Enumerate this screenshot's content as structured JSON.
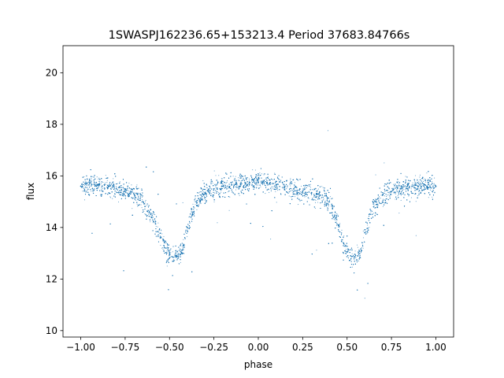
{
  "chart_data": {
    "type": "scatter",
    "title": "1SWASPJ162236.65+153213.4 Period 37683.84766s",
    "xlabel": "phase",
    "ylabel": "flux",
    "xlim": [
      -1.1,
      1.1
    ],
    "ylim": [
      9.75,
      21.05
    ],
    "xticks": [
      -1.0,
      -0.75,
      -0.5,
      -0.25,
      0.0,
      0.25,
      0.5,
      0.75,
      1.0
    ],
    "xtick_labels": [
      "−1.00",
      "−0.75",
      "−0.50",
      "−0.25",
      "0.00",
      "0.25",
      "0.50",
      "0.75",
      "1.00"
    ],
    "yticks": [
      10,
      12,
      14,
      16,
      18,
      20
    ],
    "ytick_labels": [
      "10",
      "12",
      "14",
      "16",
      "18",
      "20"
    ],
    "grid": false,
    "color": "#1f77b4",
    "series": [
      {
        "x": [
          -1.0,
          -0.95,
          -0.9,
          -0.85,
          -0.8,
          -0.75,
          -0.7,
          -0.65,
          -0.6,
          -0.55,
          -0.52,
          -0.5,
          -0.48,
          -0.46,
          -0.44,
          -0.42,
          -0.4,
          -0.35,
          -0.3,
          -0.25,
          -0.2,
          -0.15,
          -0.1,
          -0.05,
          0.0,
          0.05,
          0.1,
          0.15,
          0.2,
          0.25,
          0.3,
          0.35,
          0.4,
          0.45,
          0.48,
          0.5,
          0.52,
          0.54,
          0.56,
          0.58,
          0.6,
          0.65,
          0.7,
          0.75,
          0.8,
          0.85,
          0.9,
          0.95,
          1.0
        ],
        "y": [
          15.6,
          15.7,
          15.65,
          15.55,
          15.5,
          15.4,
          15.3,
          15.0,
          14.4,
          13.6,
          13.2,
          12.95,
          12.85,
          12.9,
          12.95,
          13.3,
          14.0,
          15.0,
          15.35,
          15.5,
          15.6,
          15.65,
          15.7,
          15.75,
          15.75,
          15.7,
          15.65,
          15.6,
          15.5,
          15.4,
          15.35,
          15.25,
          15.0,
          14.1,
          13.4,
          13.05,
          12.9,
          12.85,
          12.9,
          13.1,
          13.8,
          14.8,
          15.25,
          15.4,
          15.5,
          15.55,
          15.6,
          15.6,
          15.6
        ]
      }
    ]
  }
}
